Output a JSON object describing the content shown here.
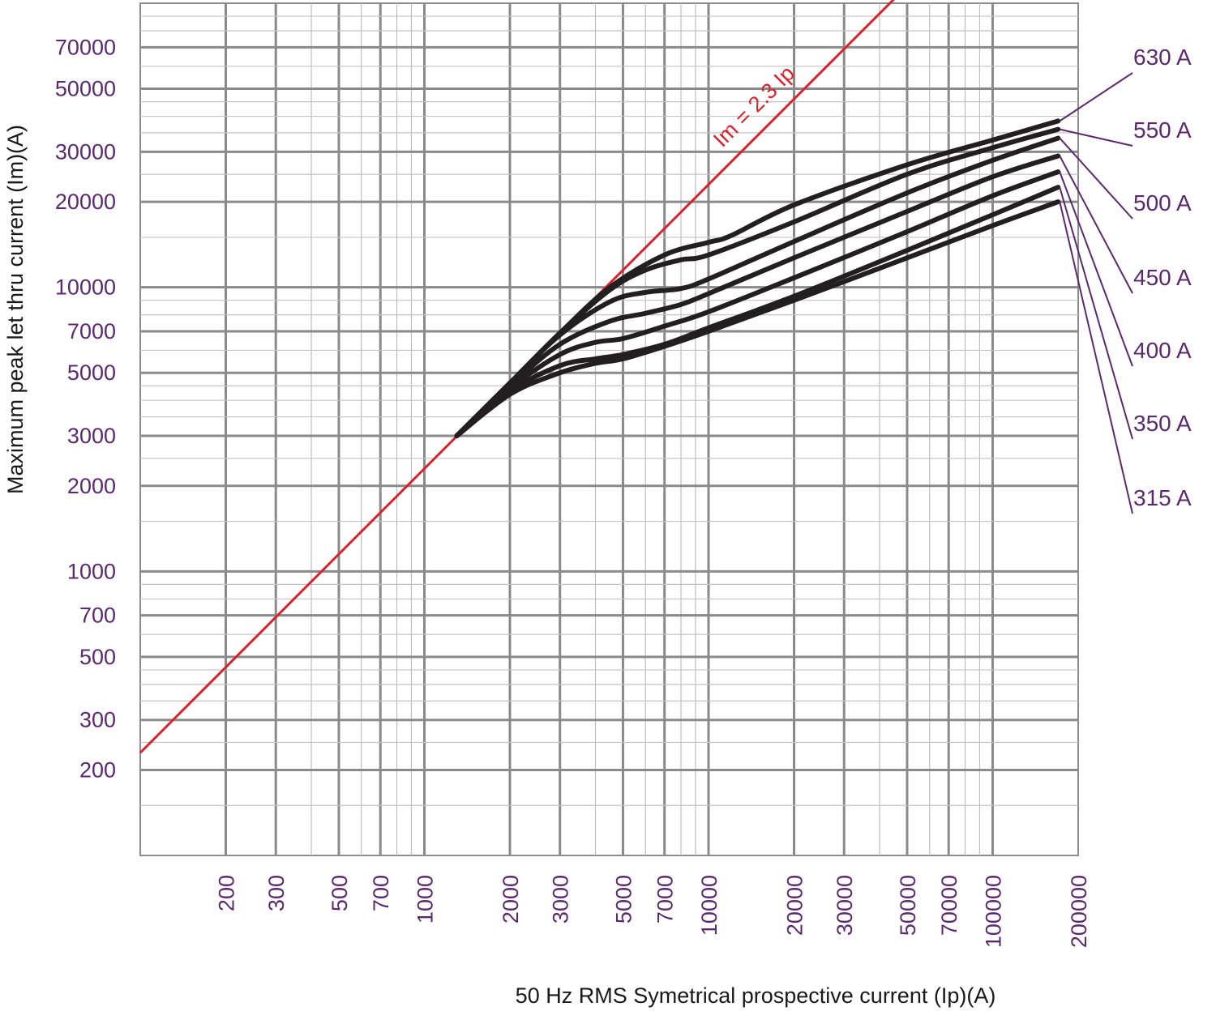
{
  "chart_data": {
    "type": "line",
    "xscale": "log",
    "yscale": "log",
    "xlim": [
      100,
      200000
    ],
    "ylim": [
      100,
      100000
    ],
    "grid": true,
    "xlabel": "50 Hz RMS Symetrical prospective current (Ip)(A)",
    "ylabel": "Maximum peak let thru current (Im)(A)",
    "x_ticks": [
      "200",
      "300",
      "500",
      "700",
      "1000",
      "2000",
      "3000",
      "5000",
      "7000",
      "10000",
      "20000",
      "30000",
      "50000",
      "70000",
      "100000",
      "200000"
    ],
    "x_tick_values": [
      200,
      300,
      500,
      700,
      1000,
      2000,
      3000,
      5000,
      7000,
      10000,
      20000,
      30000,
      50000,
      70000,
      100000,
      200000
    ],
    "y_ticks": [
      "200",
      "300",
      "500",
      "700",
      "1000",
      "2000",
      "3000",
      "5000",
      "7000",
      "10000",
      "20000",
      "30000",
      "50000",
      "70000"
    ],
    "y_tick_values": [
      200,
      300,
      500,
      700,
      1000,
      2000,
      3000,
      5000,
      7000,
      10000,
      20000,
      30000,
      50000,
      70000
    ],
    "reference_line": {
      "label": "Im = 2.3 Ip",
      "factor": 2.3,
      "color": "#d6232e",
      "x_range": [
        100,
        50000
      ]
    },
    "curve_color": "#231f20",
    "series": [
      {
        "name": "630 A",
        "points": [
          [
            1300,
            3000
          ],
          [
            2000,
            4600
          ],
          [
            3000,
            6900
          ],
          [
            4500,
            10000
          ],
          [
            7000,
            13000
          ],
          [
            10000,
            14400
          ],
          [
            12000,
            15200
          ],
          [
            20000,
            19500
          ],
          [
            50000,
            27000
          ],
          [
            100000,
            33000
          ],
          [
            170000,
            38500
          ]
        ]
      },
      {
        "name": "550 A",
        "points": [
          [
            1300,
            3000
          ],
          [
            2000,
            4600
          ],
          [
            3000,
            6900
          ],
          [
            4500,
            9800
          ],
          [
            6000,
            11500
          ],
          [
            8000,
            12500
          ],
          [
            10000,
            13000
          ],
          [
            20000,
            17000
          ],
          [
            50000,
            25000
          ],
          [
            100000,
            31000
          ],
          [
            170000,
            36000
          ]
        ]
      },
      {
        "name": "500 A",
        "points": [
          [
            1300,
            3000
          ],
          [
            2000,
            4600
          ],
          [
            3000,
            6800
          ],
          [
            4500,
            8900
          ],
          [
            6000,
            9600
          ],
          [
            8000,
            9900
          ],
          [
            10000,
            10700
          ],
          [
            20000,
            14500
          ],
          [
            50000,
            21500
          ],
          [
            100000,
            28000
          ],
          [
            170000,
            33500
          ]
        ]
      },
      {
        "name": "450 A",
        "points": [
          [
            1300,
            3000
          ],
          [
            2000,
            4500
          ],
          [
            3000,
            6300
          ],
          [
            4500,
            7600
          ],
          [
            6000,
            8100
          ],
          [
            8000,
            8700
          ],
          [
            10000,
            9500
          ],
          [
            20000,
            12700
          ],
          [
            50000,
            18500
          ],
          [
            100000,
            24500
          ],
          [
            170000,
            29000
          ]
        ]
      },
      {
        "name": "400 A",
        "points": [
          [
            1300,
            3000
          ],
          [
            2000,
            4400
          ],
          [
            3000,
            5800
          ],
          [
            4000,
            6400
          ],
          [
            5000,
            6600
          ],
          [
            7000,
            7300
          ],
          [
            10000,
            8200
          ],
          [
            20000,
            10800
          ],
          [
            50000,
            15700
          ],
          [
            100000,
            21000
          ],
          [
            170000,
            25500
          ]
        ]
      },
      {
        "name": "350 A",
        "points": [
          [
            1300,
            3000
          ],
          [
            2000,
            4300
          ],
          [
            3000,
            5300
          ],
          [
            4000,
            5600
          ],
          [
            5000,
            5800
          ],
          [
            7000,
            6300
          ],
          [
            10000,
            7200
          ],
          [
            20000,
            9300
          ],
          [
            50000,
            13500
          ],
          [
            100000,
            18000
          ],
          [
            170000,
            22500
          ]
        ]
      },
      {
        "name": "315 A",
        "points": [
          [
            1300,
            3000
          ],
          [
            2000,
            4200
          ],
          [
            3000,
            5000
          ],
          [
            4000,
            5400
          ],
          [
            5000,
            5600
          ],
          [
            7000,
            6200
          ],
          [
            10000,
            7000
          ],
          [
            20000,
            9000
          ],
          [
            50000,
            12700
          ],
          [
            100000,
            16500
          ],
          [
            170000,
            20000
          ]
        ]
      }
    ]
  }
}
